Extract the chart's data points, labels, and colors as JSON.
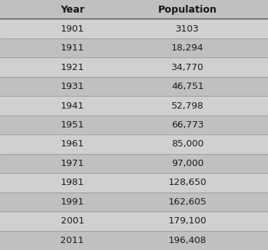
{
  "headers": [
    "Year",
    "Population"
  ],
  "rows": [
    [
      "1901",
      "3103"
    ],
    [
      "1911",
      "18,294"
    ],
    [
      "1921",
      "34,770"
    ],
    [
      "1931",
      "46,751"
    ],
    [
      "1941",
      "52,798"
    ],
    [
      "1951",
      "66,773"
    ],
    [
      "1961",
      "85,000"
    ],
    [
      "1971",
      "97,000"
    ],
    [
      "1981",
      "128,650"
    ],
    [
      "1991",
      "162,605"
    ],
    [
      "2001",
      "179,100"
    ],
    [
      "2011",
      "196,408"
    ]
  ],
  "header_bg": "#c0c0c0",
  "row_bg_light": "#d0d0d0",
  "row_bg_dark": "#c0c0c0",
  "text_color": "#1a1a1a",
  "header_fontsize": 10,
  "row_fontsize": 9.5,
  "fig_bg": "#b0b0b0",
  "line_color": "#888888",
  "header_line_color": "#666666"
}
